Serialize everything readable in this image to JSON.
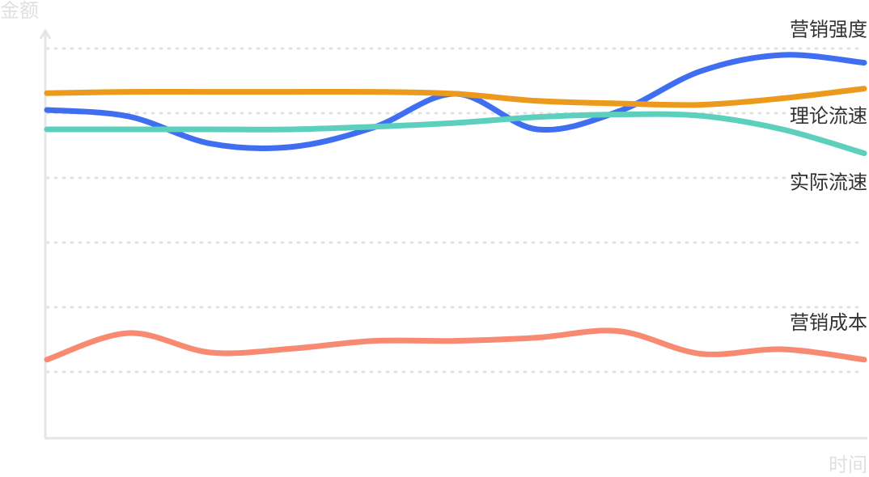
{
  "chart_data": {
    "type": "line",
    "x_label": "时间",
    "y_label": "金额",
    "x": [
      0,
      1,
      2,
      3,
      4,
      5,
      6,
      7,
      8,
      9,
      10
    ],
    "xlim": [
      0,
      10
    ],
    "ylim": [
      0,
      6.25
    ],
    "yticks": [
      1,
      2,
      3,
      4,
      5,
      6
    ],
    "grid": true,
    "series": [
      {
        "name": "营销强度",
        "color": "#3f6ff0",
        "values": [
          5.05,
          4.95,
          4.53,
          4.48,
          4.78,
          5.3,
          4.75,
          5.03,
          5.65,
          5.9,
          5.78
        ]
      },
      {
        "name": "理论流速",
        "color": "#ec9a1e",
        "values": [
          5.31,
          5.33,
          5.33,
          5.33,
          5.33,
          5.3,
          5.19,
          5.15,
          5.13,
          5.23,
          5.38
        ]
      },
      {
        "name": "实际流速",
        "color": "#5ccfbd",
        "values": [
          4.75,
          4.75,
          4.75,
          4.75,
          4.79,
          4.85,
          4.94,
          4.98,
          4.96,
          4.75,
          4.38
        ]
      },
      {
        "name": "营销成本",
        "color": "#f98a72",
        "values": [
          1.19,
          1.6,
          1.3,
          1.36,
          1.48,
          1.48,
          1.53,
          1.63,
          1.28,
          1.35,
          1.19
        ]
      }
    ]
  }
}
